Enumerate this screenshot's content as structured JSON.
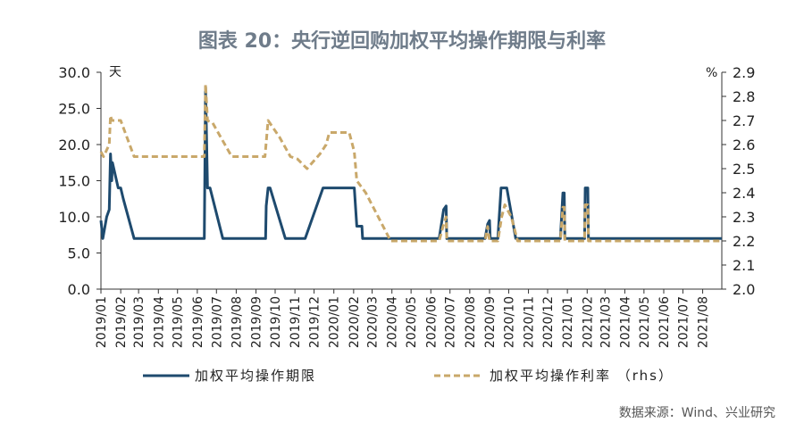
{
  "chart_data": {
    "type": "line",
    "title": "图表 20：央行逆回购加权平均操作期限与利率",
    "left_unit": "天",
    "right_unit": "%",
    "source": "数据来源：Wind、兴业研究",
    "ylim": [
      0,
      30
    ],
    "y2lim": [
      2.0,
      2.9
    ],
    "yticks": [
      "0.0",
      "5.0",
      "10.0",
      "15.0",
      "20.0",
      "25.0",
      "30.0"
    ],
    "y2ticks": [
      "2.0",
      "2.1",
      "2.2",
      "2.3",
      "2.4",
      "2.5",
      "2.6",
      "2.7",
      "2.8",
      "2.9"
    ],
    "x_range": [
      "2019-01-01",
      "2021-08-31"
    ],
    "x_ticks": [
      "2019/01",
      "2019/02",
      "2019/03",
      "2019/04",
      "2019/05",
      "2019/06",
      "2019/07",
      "2019/08",
      "2019/09",
      "2019/10",
      "2019/11",
      "2019/12",
      "2020/01",
      "2020/02",
      "2020/03",
      "2020/04",
      "2020/05",
      "2020/06",
      "2020/07",
      "2020/08",
      "2020/09",
      "2020/10",
      "2020/11",
      "2020/12",
      "2021/01",
      "2021/02",
      "2021/03",
      "2021/04",
      "2021/05",
      "2021/06",
      "2021/07",
      "2021/08"
    ],
    "grid": false,
    "legend_position": "bottom",
    "series": [
      {
        "name": "加权平均操作期限",
        "axis": "left",
        "color": "#1e4a6e",
        "style": "solid",
        "points": [
          [
            "2019-01-01",
            9.5
          ],
          [
            "2019-01-04",
            7.0
          ],
          [
            "2019-01-10",
            10.0
          ],
          [
            "2019-01-14",
            11.0
          ],
          [
            "2019-01-16",
            18.7
          ],
          [
            "2019-01-18",
            15.0
          ],
          [
            "2019-01-19",
            17.5
          ],
          [
            "2019-01-28",
            14.0
          ],
          [
            "2019-02-01",
            14.0
          ],
          [
            "2019-02-05",
            12.5
          ],
          [
            "2019-02-22",
            7.0
          ],
          [
            "2019-06-12",
            7.0
          ],
          [
            "2019-06-14",
            28.0
          ],
          [
            "2019-06-17",
            14.0
          ],
          [
            "2019-06-21",
            14.0
          ],
          [
            "2019-07-11",
            7.0
          ],
          [
            "2019-09-16",
            7.0
          ],
          [
            "2019-09-17",
            11.5
          ],
          [
            "2019-09-20",
            14.0
          ],
          [
            "2019-09-23",
            14.0
          ],
          [
            "2019-10-17",
            7.0
          ],
          [
            "2019-11-17",
            7.0
          ],
          [
            "2019-12-15",
            14.0
          ],
          [
            "2020-01-19",
            14.0
          ],
          [
            "2020-02-02",
            14.0
          ],
          [
            "2020-02-06",
            8.7
          ],
          [
            "2020-02-14",
            8.7
          ],
          [
            "2020-02-15",
            7.0
          ],
          [
            "2020-06-14",
            7.0
          ],
          [
            "2020-06-21",
            11.0
          ],
          [
            "2020-06-25",
            11.5
          ],
          [
            "2020-06-26",
            7.0
          ],
          [
            "2020-08-25",
            7.0
          ],
          [
            "2020-08-29",
            9.0
          ],
          [
            "2020-09-01",
            9.5
          ],
          [
            "2020-09-02",
            7.0
          ],
          [
            "2020-09-14",
            7.0
          ],
          [
            "2020-09-19",
            14.0
          ],
          [
            "2020-09-28",
            14.0
          ],
          [
            "2020-10-12",
            7.0
          ],
          [
            "2020-12-21",
            7.0
          ],
          [
            "2020-12-25",
            13.3
          ],
          [
            "2020-12-27",
            13.3
          ],
          [
            "2020-12-28",
            7.0
          ],
          [
            "2021-01-28",
            7.0
          ],
          [
            "2021-01-29",
            14.0
          ],
          [
            "2021-02-02",
            14.0
          ],
          [
            "2021-02-03",
            7.0
          ],
          [
            "2021-08-31",
            7.0
          ]
        ]
      },
      {
        "name": "加权平均操作利率 （rhs）",
        "axis": "right",
        "color": "#c9a86a",
        "style": "dashed",
        "points": [
          [
            "2019-01-01",
            2.57
          ],
          [
            "2019-01-05",
            2.55
          ],
          [
            "2019-01-14",
            2.6
          ],
          [
            "2019-01-16",
            2.72
          ],
          [
            "2019-01-18",
            2.7
          ],
          [
            "2019-02-01",
            2.7
          ],
          [
            "2019-02-22",
            2.55
          ],
          [
            "2019-06-12",
            2.55
          ],
          [
            "2019-06-14",
            2.85
          ],
          [
            "2019-06-17",
            2.7
          ],
          [
            "2019-06-25",
            2.69
          ],
          [
            "2019-07-25",
            2.55
          ],
          [
            "2019-09-15",
            2.55
          ],
          [
            "2019-09-20",
            2.7
          ],
          [
            "2019-10-08",
            2.63
          ],
          [
            "2019-10-25",
            2.55
          ],
          [
            "2019-11-05",
            2.54
          ],
          [
            "2019-11-20",
            2.5
          ],
          [
            "2019-12-10",
            2.56
          ],
          [
            "2019-12-20",
            2.6
          ],
          [
            "2019-12-25",
            2.65
          ],
          [
            "2020-01-25",
            2.65
          ],
          [
            "2020-02-02",
            2.57
          ],
          [
            "2020-02-06",
            2.45
          ],
          [
            "2020-02-20",
            2.4
          ],
          [
            "2020-03-30",
            2.2
          ],
          [
            "2020-06-14",
            2.2
          ],
          [
            "2020-06-20",
            2.26
          ],
          [
            "2020-06-25",
            2.3
          ],
          [
            "2020-06-26",
            2.2
          ],
          [
            "2020-08-25",
            2.2
          ],
          [
            "2020-08-29",
            2.26
          ],
          [
            "2020-09-01",
            2.2
          ],
          [
            "2020-09-14",
            2.2
          ],
          [
            "2020-09-20",
            2.3
          ],
          [
            "2020-09-25",
            2.35
          ],
          [
            "2020-10-05",
            2.3
          ],
          [
            "2020-10-15",
            2.2
          ],
          [
            "2020-12-21",
            2.2
          ],
          [
            "2020-12-25",
            2.34
          ],
          [
            "2020-12-27",
            2.34
          ],
          [
            "2020-12-28",
            2.2
          ],
          [
            "2021-01-28",
            2.2
          ],
          [
            "2021-01-29",
            2.35
          ],
          [
            "2021-02-02",
            2.35
          ],
          [
            "2021-02-03",
            2.2
          ],
          [
            "2021-08-31",
            2.2
          ]
        ]
      }
    ]
  }
}
